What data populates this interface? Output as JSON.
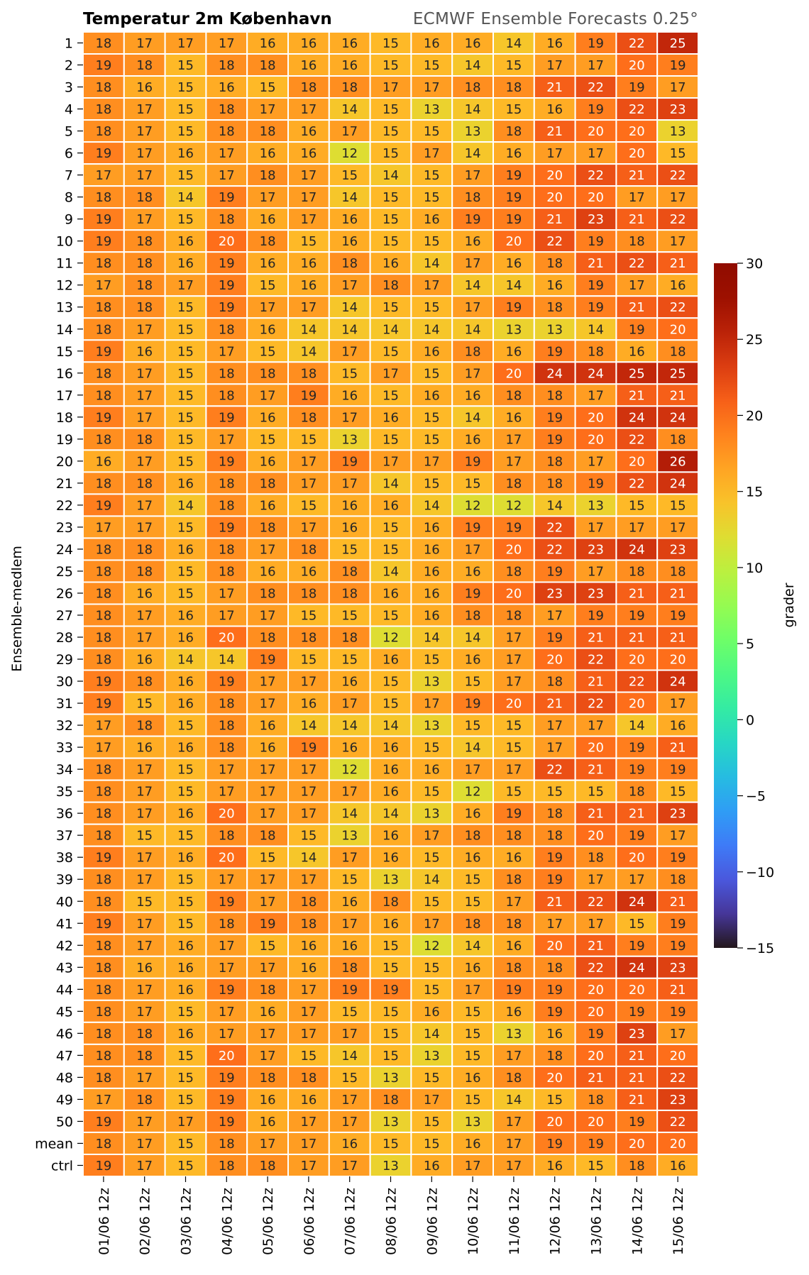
{
  "chart_data": {
    "type": "heatmap",
    "title": "Temperatur 2m København",
    "subtitle": "ECMWF Ensemble Forecasts 0.25°",
    "ylabel": "Ensemble-medlem",
    "colorbar_label": "grader",
    "colorbar_range": [
      -15,
      30
    ],
    "colorbar_ticks": [
      30,
      25,
      20,
      15,
      10,
      5,
      0,
      -5,
      -10,
      -15
    ],
    "colormap": "turbo",
    "x": [
      "01/06 12z",
      "02/06 12z",
      "03/06 12z",
      "04/06 12z",
      "05/06 12z",
      "06/06 12z",
      "07/06 12z",
      "08/06 12z",
      "09/06 12z",
      "10/06 12z",
      "11/06 12z",
      "12/06 12z",
      "13/06 12z",
      "14/06 12z",
      "15/06 12z"
    ],
    "y": [
      "1",
      "2",
      "3",
      "4",
      "5",
      "6",
      "7",
      "8",
      "9",
      "10",
      "11",
      "12",
      "13",
      "14",
      "15",
      "16",
      "17",
      "18",
      "19",
      "20",
      "21",
      "22",
      "23",
      "24",
      "25",
      "26",
      "27",
      "28",
      "29",
      "30",
      "31",
      "32",
      "33",
      "34",
      "35",
      "36",
      "37",
      "38",
      "39",
      "40",
      "41",
      "42",
      "43",
      "44",
      "45",
      "46",
      "47",
      "48",
      "49",
      "50",
      "mean",
      "ctrl"
    ],
    "values": [
      [
        18,
        17,
        17,
        17,
        16,
        16,
        16,
        15,
        16,
        16,
        14,
        16,
        19,
        22,
        25
      ],
      [
        19,
        18,
        15,
        18,
        18,
        16,
        16,
        15,
        15,
        14,
        15,
        17,
        17,
        20,
        19
      ],
      [
        18,
        16,
        15,
        16,
        15,
        18,
        18,
        17,
        17,
        18,
        18,
        21,
        22,
        19,
        17
      ],
      [
        18,
        17,
        15,
        18,
        17,
        17,
        14,
        15,
        13,
        14,
        15,
        16,
        19,
        22,
        23
      ],
      [
        18,
        17,
        15,
        18,
        18,
        16,
        17,
        15,
        15,
        13,
        18,
        21,
        20,
        20,
        13
      ],
      [
        19,
        17,
        16,
        17,
        16,
        16,
        12,
        15,
        17,
        14,
        16,
        17,
        17,
        20,
        15
      ],
      [
        17,
        17,
        15,
        17,
        18,
        17,
        15,
        14,
        15,
        17,
        19,
        20,
        22,
        21,
        22
      ],
      [
        18,
        18,
        14,
        19,
        17,
        17,
        14,
        15,
        15,
        18,
        19,
        20,
        20,
        17,
        17
      ],
      [
        19,
        17,
        15,
        18,
        16,
        17,
        16,
        15,
        16,
        19,
        19,
        21,
        23,
        21,
        22
      ],
      [
        19,
        18,
        16,
        20,
        18,
        15,
        16,
        15,
        15,
        16,
        20,
        22,
        19,
        18,
        17
      ],
      [
        18,
        18,
        16,
        19,
        16,
        16,
        18,
        16,
        14,
        17,
        16,
        18,
        21,
        22,
        21
      ],
      [
        17,
        18,
        17,
        19,
        15,
        16,
        17,
        18,
        17,
        14,
        14,
        16,
        19,
        17,
        16
      ],
      [
        18,
        18,
        15,
        19,
        17,
        17,
        14,
        15,
        15,
        17,
        19,
        18,
        19,
        21,
        22
      ],
      [
        18,
        17,
        15,
        18,
        16,
        14,
        14,
        14,
        14,
        14,
        13,
        13,
        14,
        19,
        20
      ],
      [
        19,
        16,
        15,
        17,
        15,
        14,
        17,
        15,
        16,
        18,
        16,
        19,
        18,
        16,
        18
      ],
      [
        18,
        17,
        15,
        18,
        18,
        18,
        15,
        17,
        15,
        17,
        20,
        24,
        24,
        25,
        25
      ],
      [
        18,
        17,
        15,
        18,
        17,
        19,
        16,
        15,
        16,
        16,
        18,
        18,
        17,
        21,
        21
      ],
      [
        19,
        17,
        15,
        19,
        16,
        18,
        17,
        16,
        15,
        14,
        16,
        19,
        20,
        24,
        24
      ],
      [
        18,
        18,
        15,
        17,
        15,
        15,
        13,
        15,
        15,
        16,
        17,
        19,
        20,
        22,
        18
      ],
      [
        16,
        17,
        15,
        19,
        16,
        17,
        19,
        17,
        17,
        19,
        17,
        18,
        17,
        20,
        26
      ],
      [
        18,
        18,
        16,
        18,
        18,
        17,
        17,
        14,
        15,
        15,
        18,
        18,
        19,
        22,
        24
      ],
      [
        19,
        17,
        14,
        18,
        16,
        15,
        16,
        16,
        14,
        12,
        12,
        14,
        13,
        15,
        15
      ],
      [
        17,
        17,
        15,
        19,
        18,
        17,
        16,
        15,
        16,
        19,
        19,
        22,
        17,
        17,
        17
      ],
      [
        18,
        18,
        16,
        18,
        17,
        18,
        15,
        15,
        16,
        17,
        20,
        22,
        23,
        24,
        23
      ],
      [
        18,
        18,
        15,
        18,
        16,
        16,
        18,
        14,
        16,
        16,
        18,
        19,
        17,
        18,
        18
      ],
      [
        18,
        16,
        15,
        17,
        18,
        18,
        18,
        16,
        16,
        19,
        20,
        23,
        23,
        21,
        21
      ],
      [
        18,
        17,
        16,
        17,
        17,
        15,
        15,
        15,
        16,
        18,
        18,
        17,
        19,
        19,
        19
      ],
      [
        18,
        17,
        16,
        20,
        18,
        18,
        18,
        12,
        14,
        14,
        17,
        19,
        21,
        21,
        21
      ],
      [
        18,
        16,
        14,
        14,
        19,
        15,
        15,
        16,
        15,
        16,
        17,
        20,
        22,
        20,
        20
      ],
      [
        19,
        18,
        16,
        19,
        17,
        17,
        16,
        15,
        13,
        15,
        17,
        18,
        21,
        22,
        24
      ],
      [
        19,
        15,
        16,
        18,
        17,
        16,
        17,
        15,
        17,
        19,
        20,
        21,
        22,
        20,
        17
      ],
      [
        17,
        18,
        15,
        18,
        16,
        14,
        14,
        14,
        13,
        15,
        15,
        17,
        17,
        14,
        16
      ],
      [
        17,
        16,
        16,
        18,
        16,
        19,
        16,
        16,
        15,
        14,
        15,
        17,
        20,
        19,
        21
      ],
      [
        18,
        17,
        15,
        17,
        17,
        17,
        12,
        16,
        16,
        17,
        17,
        22,
        21,
        19,
        19
      ],
      [
        18,
        17,
        15,
        17,
        17,
        17,
        17,
        16,
        15,
        12,
        15,
        15,
        15,
        18,
        15
      ],
      [
        18,
        17,
        16,
        20,
        17,
        17,
        14,
        14,
        13,
        16,
        19,
        18,
        21,
        21,
        23
      ],
      [
        18,
        15,
        15,
        18,
        18,
        15,
        13,
        16,
        17,
        18,
        18,
        18,
        20,
        19,
        17
      ],
      [
        19,
        17,
        16,
        20,
        15,
        14,
        17,
        16,
        15,
        16,
        16,
        19,
        18,
        20,
        19
      ],
      [
        18,
        17,
        15,
        17,
        17,
        17,
        15,
        13,
        14,
        15,
        18,
        19,
        17,
        17,
        18
      ],
      [
        18,
        15,
        15,
        19,
        17,
        18,
        16,
        18,
        15,
        15,
        17,
        21,
        22,
        24,
        21
      ],
      [
        19,
        17,
        15,
        18,
        19,
        18,
        17,
        16,
        17,
        18,
        18,
        17,
        17,
        15,
        19
      ],
      [
        18,
        17,
        16,
        17,
        15,
        16,
        16,
        15,
        12,
        14,
        16,
        20,
        21,
        19,
        19
      ],
      [
        18,
        16,
        16,
        17,
        17,
        16,
        18,
        15,
        15,
        16,
        18,
        18,
        22,
        24,
        23
      ],
      [
        18,
        17,
        16,
        19,
        18,
        17,
        19,
        19,
        15,
        17,
        19,
        19,
        20,
        20,
        21
      ],
      [
        18,
        17,
        15,
        17,
        16,
        17,
        15,
        15,
        16,
        15,
        16,
        19,
        20,
        19,
        19
      ],
      [
        18,
        18,
        16,
        17,
        17,
        17,
        17,
        15,
        14,
        15,
        13,
        16,
        19,
        23,
        17
      ],
      [
        18,
        18,
        15,
        20,
        17,
        15,
        14,
        15,
        13,
        15,
        17,
        18,
        20,
        21,
        20
      ],
      [
        18,
        17,
        15,
        19,
        18,
        18,
        15,
        13,
        15,
        16,
        18,
        20,
        21,
        21,
        22
      ],
      [
        17,
        18,
        15,
        19,
        16,
        16,
        17,
        18,
        17,
        15,
        14,
        15,
        18,
        21,
        23
      ],
      [
        19,
        17,
        17,
        19,
        16,
        17,
        17,
        13,
        15,
        13,
        17,
        20,
        20,
        19,
        22
      ],
      [
        18,
        17,
        15,
        18,
        17,
        17,
        16,
        15,
        15,
        16,
        17,
        19,
        19,
        20,
        20
      ],
      [
        19,
        17,
        15,
        18,
        18,
        17,
        17,
        13,
        16,
        17,
        17,
        16,
        15,
        18,
        16
      ]
    ]
  }
}
